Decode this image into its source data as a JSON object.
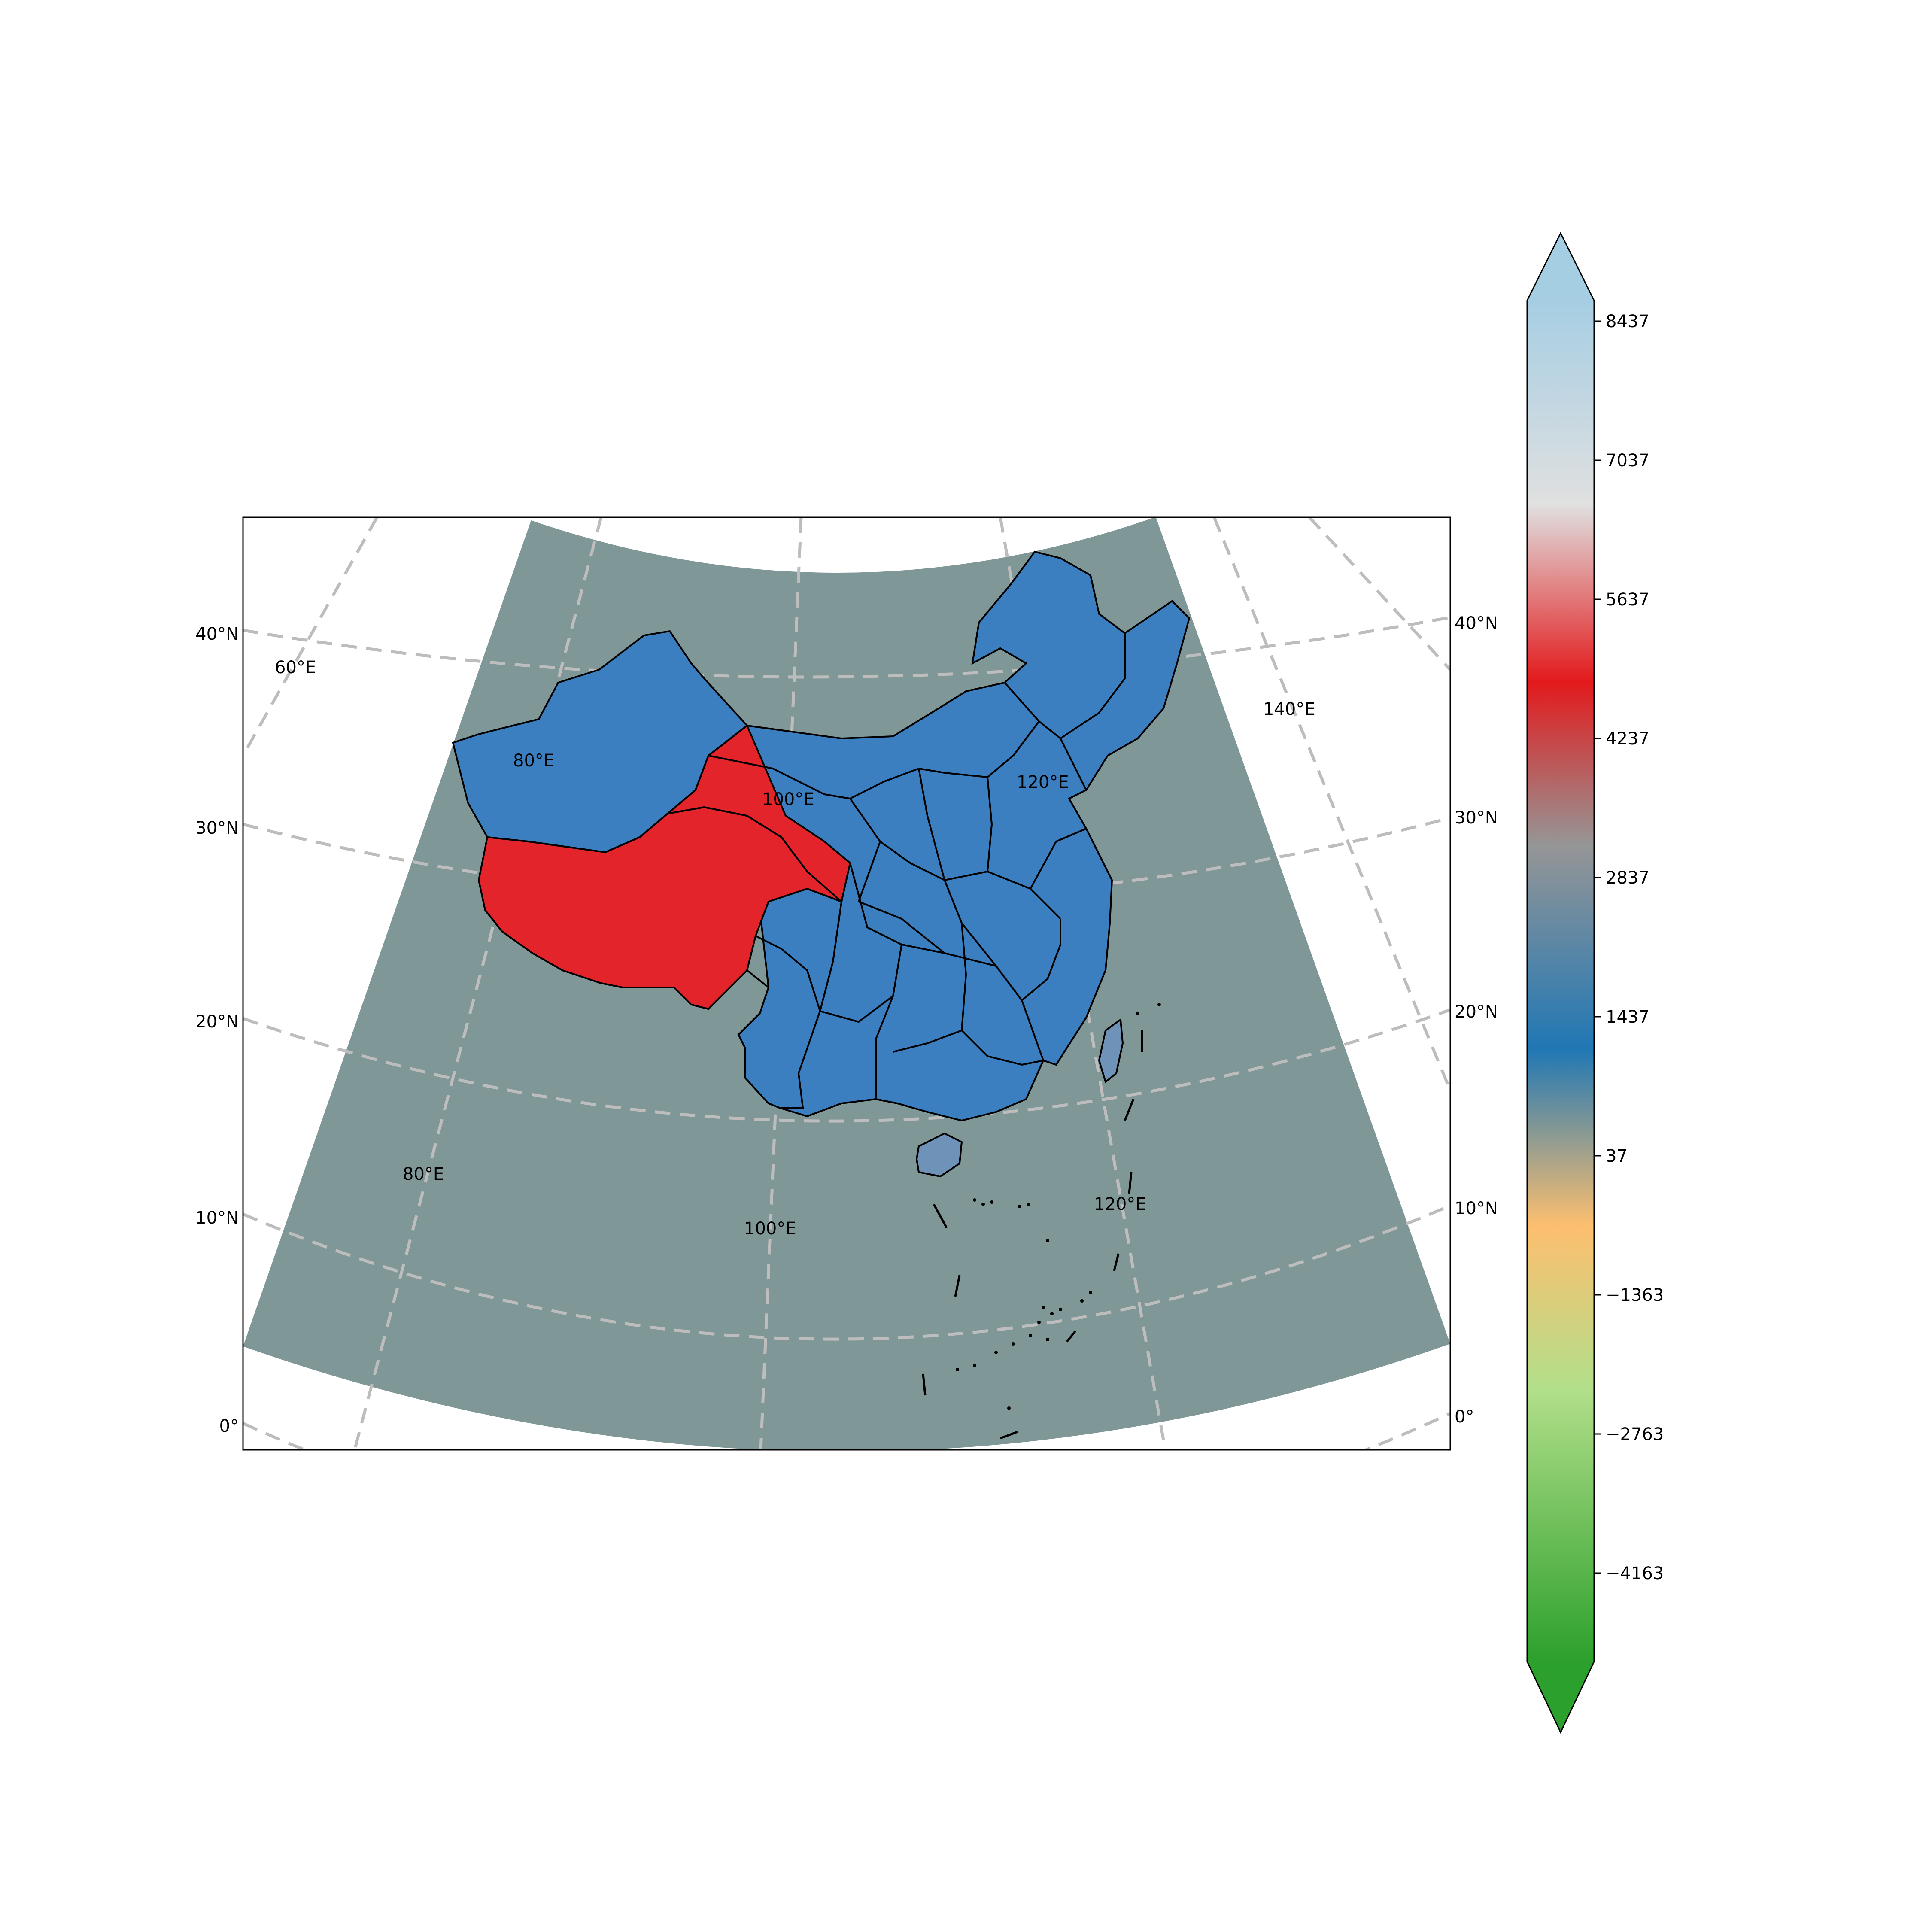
{
  "map": {
    "projection": "lambert-conformal-conic",
    "ocean_color": "#7f9797",
    "gridline_color": "#bdbdbd",
    "gridline_style": "dashed",
    "border_color": "#000000",
    "inner_lon_labels": [
      "60°E",
      "80°E",
      "100°E",
      "120°E",
      "140°E",
      "80°E",
      "100°E",
      "120°E"
    ],
    "left_lat_labels": [
      "40°N",
      "30°N",
      "20°N",
      "10°N",
      "0°"
    ],
    "right_lat_labels": [
      "40°N",
      "30°N",
      "20°N",
      "10°N",
      "0°"
    ],
    "regions": [
      {
        "name": "tibetan-plateau",
        "color": "#e3242b"
      },
      {
        "name": "qinghai-plateau",
        "color": "#e3242b"
      },
      {
        "name": "xinjiang",
        "color": "#3c7fc0"
      },
      {
        "name": "northeast-and-east-china",
        "color": "#3c7fc0"
      },
      {
        "name": "south-china",
        "color": "#3c7fc0"
      },
      {
        "name": "hainan-island",
        "color": "#6f92b8"
      },
      {
        "name": "taiwan-island",
        "color": "#6f92b8"
      }
    ]
  },
  "colorbar": {
    "ticks": [
      "8437",
      "7037",
      "5637",
      "4237",
      "2837",
      "1437",
      "37",
      "−1363",
      "−2763",
      "−4163"
    ],
    "extend": "both",
    "colors": [
      "#2ca02c",
      "#b2df8a",
      "#fdbf6f",
      "#1f77b4",
      "#969696",
      "#e31a1c",
      "#e0e0e0",
      "#a6cee3"
    ]
  }
}
